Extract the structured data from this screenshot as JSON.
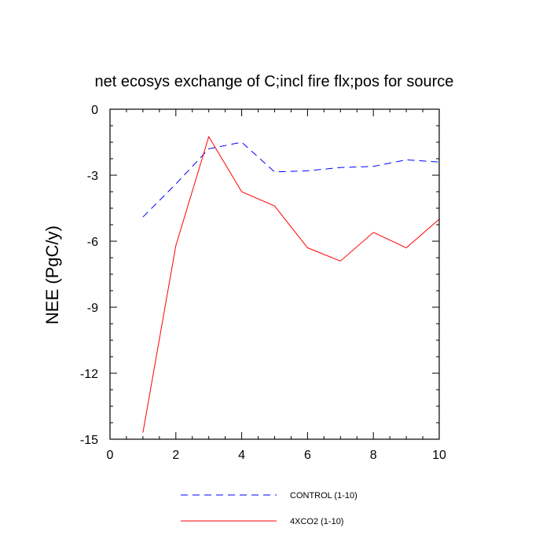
{
  "chart_data": {
    "type": "line",
    "title": "net ecosys exchange of C;incl fire flx;pos for source",
    "xlabel": "",
    "ylabel": "NEE  (PgC/y)",
    "xlim": [
      0,
      10
    ],
    "ylim": [
      -15,
      0
    ],
    "x_ticks": [
      0,
      2,
      4,
      6,
      8,
      10
    ],
    "x_tick_labels": [
      "0",
      "2",
      "4",
      "6",
      "8",
      "10"
    ],
    "y_ticks": [
      0,
      -3,
      -6,
      -9,
      -12,
      -15
    ],
    "y_tick_labels": [
      "0",
      "-3",
      "-6",
      "-9",
      "-12",
      "-15"
    ],
    "grid": false,
    "legend_position": "bottom",
    "x": [
      1,
      2,
      3,
      4,
      5,
      6,
      7,
      8,
      9,
      10
    ],
    "series": [
      {
        "name": "CONTROL (1-10)",
        "color": "#0000ff",
        "dash": "dashed",
        "values": [
          -4.9,
          -3.4,
          -1.8,
          -1.5,
          -2.85,
          -2.8,
          -2.65,
          -2.6,
          -2.3,
          -2.4
        ]
      },
      {
        "name": "4XCO2 (1-10)",
        "color": "#ff0000",
        "dash": "solid",
        "values": [
          -14.7,
          -6.2,
          -1.25,
          -3.75,
          -4.4,
          -6.3,
          -6.9,
          -5.6,
          -6.3,
          -5.0
        ]
      }
    ]
  }
}
